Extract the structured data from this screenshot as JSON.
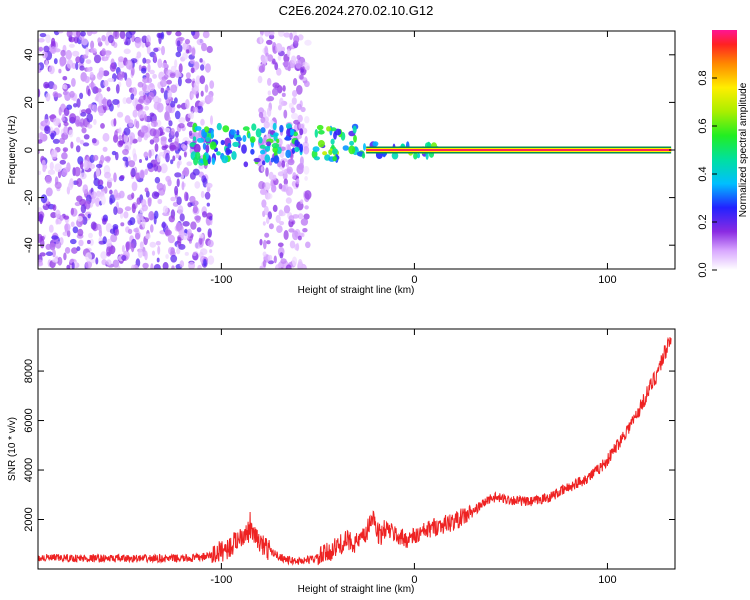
{
  "title": "C2E6.2024.270.02.10.G12",
  "chart_data": [
    {
      "type": "heatmap",
      "xlabel": "Height of straight line (km)",
      "ylabel": "Frequency (Hz)",
      "xlim": [
        -195,
        135
      ],
      "ylim": [
        -50,
        50
      ],
      "xticks": [
        -100,
        0,
        100
      ],
      "yticks": [
        -40,
        -20,
        0,
        20,
        40
      ],
      "colorbar": {
        "label": "Normalized spectral amplitude",
        "range": [
          0,
          1
        ],
        "ticks": [
          0.0,
          0.2,
          0.4,
          0.6,
          0.8
        ]
      },
      "signal_line": {
        "x_start": -25,
        "x_end": 133,
        "frequency": 0,
        "amplitude": 0.9
      },
      "features": [
        {
          "x_range": [
            -195,
            -105
          ],
          "freq_range": [
            -50,
            50
          ],
          "amplitude": 0.15
        },
        {
          "x_range": [
            -80,
            -55
          ],
          "freq_range": [
            -50,
            50
          ],
          "amplitude": 0.12
        },
        {
          "x_range": [
            -115,
            -58
          ],
          "freq_range": [
            -6,
            10
          ],
          "amplitude": 0.4
        },
        {
          "x_range": [
            -52,
            -30
          ],
          "freq_range": [
            -4,
            10
          ],
          "amplitude": 0.5
        },
        {
          "x_range": [
            -30,
            12
          ],
          "freq_range": [
            -3,
            3
          ],
          "amplitude": 0.45
        }
      ]
    },
    {
      "type": "line",
      "xlabel": "Height of straight line (km)",
      "ylabel": "SNR (10 * v/v)",
      "xlim": [
        -195,
        135
      ],
      "ylim": [
        0,
        9700
      ],
      "xticks": [
        -100,
        0,
        100
      ],
      "yticks": [
        2000,
        4000,
        6000,
        8000
      ],
      "color": "#ee2222",
      "series": [
        {
          "x": [
            -195,
            -170,
            -140,
            -115,
            -105,
            -95,
            -90,
            -85,
            -80,
            -75,
            -70,
            -65,
            -60,
            -55,
            -50,
            -45,
            -40,
            -35,
            -30,
            -25,
            -22,
            -20,
            -18,
            -15,
            -10,
            -5,
            0,
            10,
            20,
            30,
            35,
            40,
            50,
            60,
            70,
            80,
            85,
            90,
            95,
            100,
            105,
            110,
            115,
            120,
            125,
            130,
            133
          ],
          "y": [
            450,
            430,
            420,
            430,
            550,
            900,
            1350,
            1500,
            1050,
            750,
            500,
            350,
            320,
            380,
            450,
            650,
            900,
            1150,
            1050,
            1350,
            2200,
            1850,
            1250,
            1650,
            1400,
            1200,
            1300,
            1700,
            1900,
            2300,
            2600,
            2900,
            2800,
            2700,
            2900,
            3300,
            3500,
            3700,
            4000,
            4400,
            5000,
            5600,
            6200,
            7000,
            7800,
            8800,
            9500
          ]
        }
      ]
    }
  ]
}
